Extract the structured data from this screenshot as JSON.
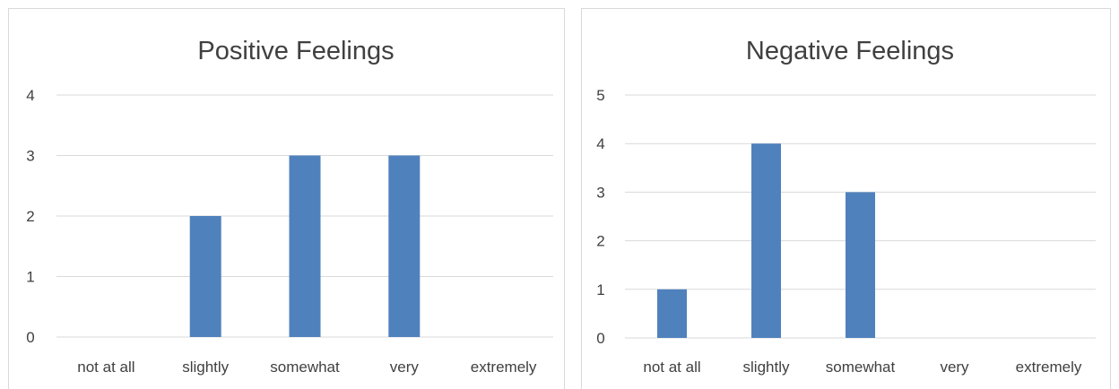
{
  "chart_data": [
    {
      "type": "bar",
      "title": "Positive Feelings",
      "categories": [
        "not at all",
        "slightly",
        "somewhat",
        "very",
        "extremely"
      ],
      "values": [
        0,
        2,
        3,
        3,
        0
      ],
      "ylim": [
        0,
        4
      ],
      "yticks": [
        "0",
        "1",
        "2",
        "3",
        "4"
      ],
      "grid": true,
      "legend": "none",
      "bar_color": "#4f81bd"
    },
    {
      "type": "bar",
      "title": "Negative Feelings",
      "categories": [
        "not at all",
        "slightly",
        "somewhat",
        "very",
        "extremely"
      ],
      "values": [
        1,
        4,
        3,
        0,
        0
      ],
      "ylim": [
        0,
        5
      ],
      "yticks": [
        "0",
        "1",
        "2",
        "3",
        "4",
        "5"
      ],
      "grid": true,
      "legend": "none",
      "bar_color": "#4f81bd"
    }
  ]
}
